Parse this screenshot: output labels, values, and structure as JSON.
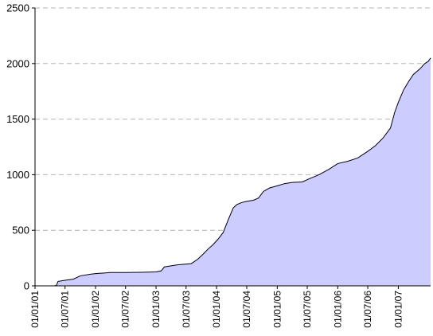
{
  "chart_data": {
    "type": "area",
    "title": "",
    "xlabel": "",
    "ylabel": "",
    "ylim": [
      0,
      2500
    ],
    "yticks": [
      0,
      500,
      1000,
      1500,
      2000,
      2500
    ],
    "xlim": [
      "2001-01-01",
      "2007-07-15"
    ],
    "xtick_dates": [
      "2001-01-01",
      "2001-07-01",
      "2002-01-01",
      "2002-07-01",
      "2003-01-01",
      "2003-07-01",
      "2004-01-01",
      "2004-07-01",
      "2005-01-01",
      "2005-07-01",
      "2006-01-01",
      "2006-07-01",
      "2007-01-01"
    ],
    "xtick_labels": [
      "01/01/01",
      "01/07/01",
      "01/01/02",
      "01/07/02",
      "01/01/03",
      "01/07/03",
      "01/01/04",
      "01/07/04",
      "01/01/05",
      "01/07/05",
      "01/01/06",
      "01/07/06",
      "01/01/07"
    ],
    "grid": {
      "horizontal": true,
      "style": "dashed"
    },
    "colors": {
      "fill": "#ccccff",
      "line": "#000000",
      "grid": "#b4b4b4",
      "vertical_separator": "#e8e8ff"
    },
    "series": [
      {
        "points": [
          [
            "2001-01-01",
            0
          ],
          [
            "2001-04-25",
            0
          ],
          [
            "2001-05-10",
            4
          ],
          [
            "2001-05-20",
            40
          ],
          [
            "2001-07-01",
            50
          ],
          [
            "2001-08-20",
            60
          ],
          [
            "2001-10-01",
            90
          ],
          [
            "2001-12-01",
            105
          ],
          [
            "2002-01-01",
            110
          ],
          [
            "2002-02-15",
            115
          ],
          [
            "2002-04-01",
            120
          ],
          [
            "2002-07-01",
            120
          ],
          [
            "2002-10-01",
            122
          ],
          [
            "2003-01-01",
            125
          ],
          [
            "2003-02-01",
            135
          ],
          [
            "2003-02-20",
            170
          ],
          [
            "2003-04-01",
            180
          ],
          [
            "2003-05-15",
            190
          ],
          [
            "2003-08-01",
            200
          ],
          [
            "2003-09-10",
            240
          ],
          [
            "2003-10-15",
            290
          ],
          [
            "2003-11-10",
            330
          ],
          [
            "2003-12-10",
            370
          ],
          [
            "2004-01-10",
            420
          ],
          [
            "2004-02-10",
            480
          ],
          [
            "2004-03-10",
            590
          ],
          [
            "2004-04-10",
            700
          ],
          [
            "2004-05-01",
            730
          ],
          [
            "2004-06-01",
            750
          ],
          [
            "2004-07-01",
            760
          ],
          [
            "2004-08-10",
            770
          ],
          [
            "2004-09-10",
            790
          ],
          [
            "2004-10-10",
            850
          ],
          [
            "2004-11-15",
            880
          ],
          [
            "2005-01-01",
            900
          ],
          [
            "2005-02-15",
            920
          ],
          [
            "2005-04-01",
            930
          ],
          [
            "2005-06-01",
            935
          ],
          [
            "2005-07-15",
            965
          ],
          [
            "2005-09-10",
            1000
          ],
          [
            "2005-11-10",
            1050
          ],
          [
            "2006-01-01",
            1100
          ],
          [
            "2006-03-01",
            1120
          ],
          [
            "2006-05-01",
            1150
          ],
          [
            "2006-07-01",
            1210
          ],
          [
            "2006-08-15",
            1260
          ],
          [
            "2006-10-01",
            1330
          ],
          [
            "2006-11-15",
            1420
          ],
          [
            "2006-12-10",
            1560
          ],
          [
            "2007-01-01",
            1650
          ],
          [
            "2007-02-01",
            1760
          ],
          [
            "2007-03-01",
            1830
          ],
          [
            "2007-04-01",
            1900
          ],
          [
            "2007-05-10",
            1950
          ],
          [
            "2007-06-10",
            2000
          ],
          [
            "2007-07-01",
            2020
          ],
          [
            "2007-07-15",
            2050
          ]
        ]
      }
    ]
  }
}
